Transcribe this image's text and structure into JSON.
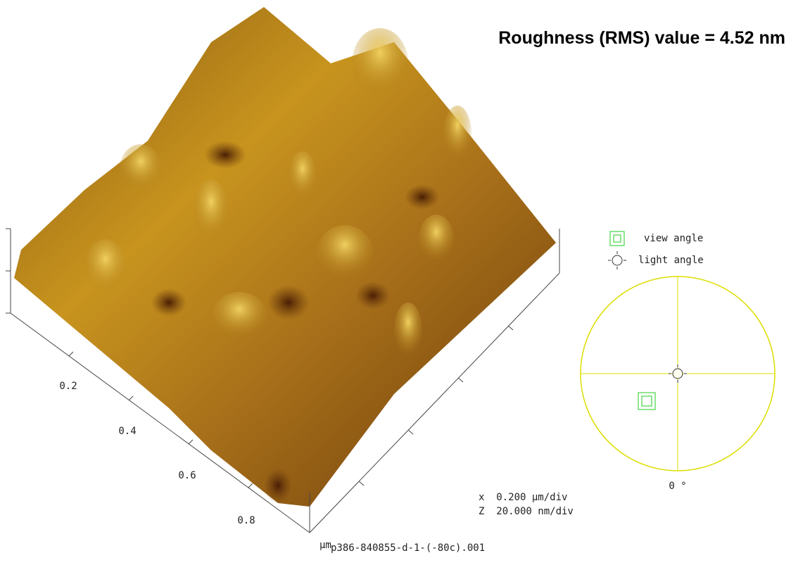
{
  "header": {
    "title": "Roughness (RMS) value = 4.52 nm"
  },
  "axis": {
    "labels": [
      "0.2",
      "0.4",
      "0.6",
      "0.8"
    ],
    "unit": "μm"
  },
  "scale": {
    "x": "x  0.200 μm/div",
    "z": "Z  20.000 nm/div"
  },
  "filename": "p386-840855-d-1-(-80c).001",
  "legend": {
    "view": "view angle",
    "light": "light angle"
  },
  "dial": {
    "angle": "0 °"
  }
}
